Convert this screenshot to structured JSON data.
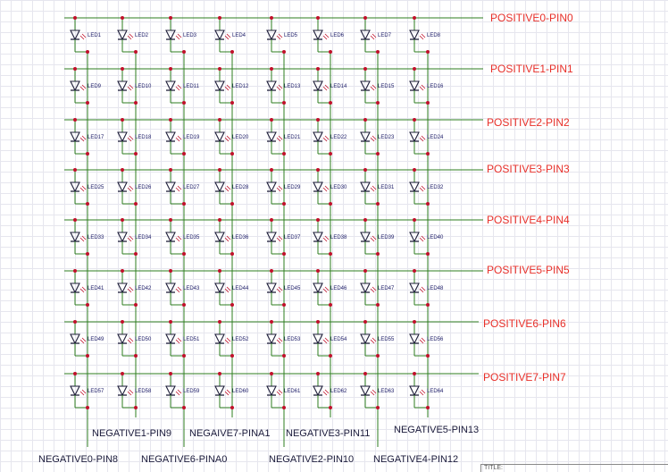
{
  "positive_lines": [
    "POSITIVE0-PIN0",
    "POSITIVE1-PIN1",
    "POSITIVE2-PIN2",
    "POSITIVE3-PIN3",
    "POSITIVE4-PIN4",
    "POSITIVE5-PIN5",
    "POSITIVE6-PIN6",
    "POSITIVE7-PIN7"
  ],
  "negative_lines": [
    "NEGATIVE0-PIN8",
    "NEGATIVE1-PIN9",
    "NEGATIVE2-PIN10",
    "NEGATIVE3-PIN11",
    "NEGATIVE4-PIN12",
    "NEGATIVE5-PIN13",
    "NEGATIVE6-PINA0",
    "NEGAIVE7-PINA1"
  ],
  "leds": [
    [
      "LED1",
      "LED2",
      "LED3",
      "LED4",
      "LED5",
      "LED6",
      "LED7",
      "LED8"
    ],
    [
      "LED9",
      "LED10",
      "LED11",
      "LED12",
      "LED13",
      "LED14",
      "LED15",
      "LED16"
    ],
    [
      "LED17",
      "LED18",
      "LED19",
      "LED20",
      "LED21",
      "LED22",
      "LED23",
      "LED24"
    ],
    [
      "LED25",
      "LED26",
      "LED27",
      "LED28",
      "LED29",
      "LED30",
      "LED31",
      "LED32"
    ],
    [
      "LED33",
      "LED34",
      "LED35",
      "LED36",
      "LED37",
      "LED38",
      "LED39",
      "LED40"
    ],
    [
      "LED41",
      "LED42",
      "LED43",
      "LED44",
      "LED45",
      "LED46",
      "LED47",
      "LED48"
    ],
    [
      "LED49",
      "LED50",
      "LED51",
      "LED52",
      "LED53",
      "LED54",
      "LED55",
      "LED56"
    ],
    [
      "LED57",
      "LED58",
      "LED59",
      "LED60",
      "LED61",
      "LED62",
      "LED63",
      "LED64"
    ]
  ],
  "title_block": {
    "label": "TITLE:"
  },
  "colors": {
    "wire": "#2e7d1f",
    "junction": "#c0102a",
    "led_body": "#1f1f3a",
    "positive_label": "#e8302a",
    "negative_label": "#1a1a3a"
  }
}
